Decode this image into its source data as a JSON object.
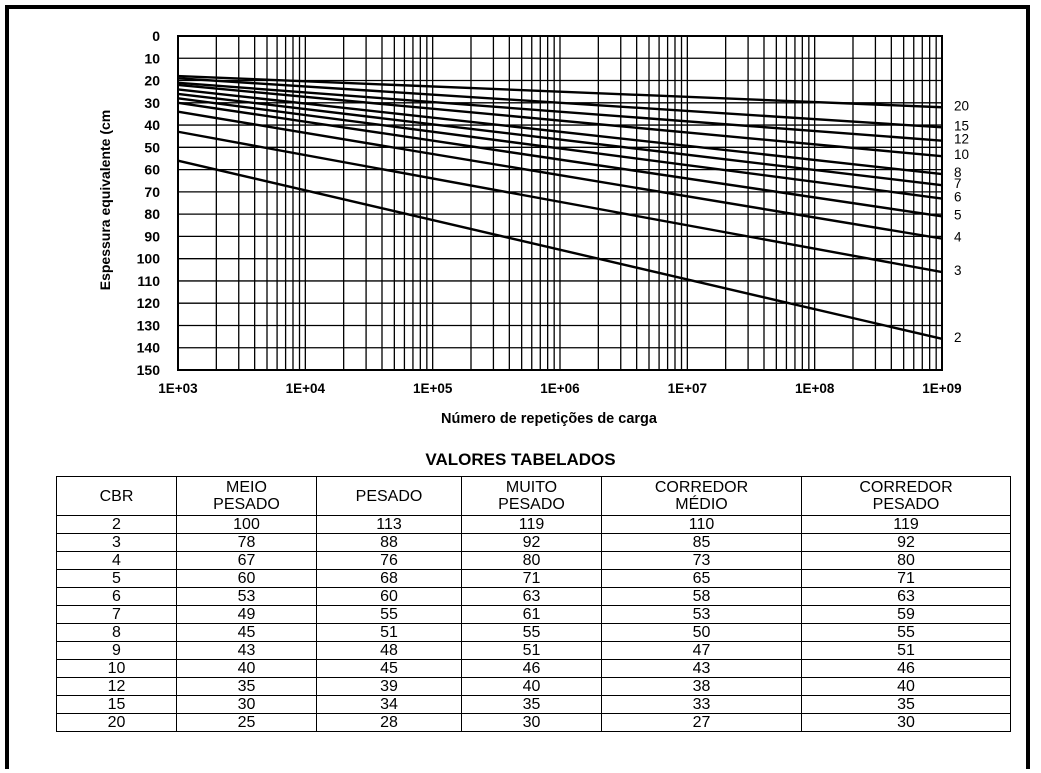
{
  "chart_data": {
    "type": "line",
    "title": "",
    "xlabel": "Número de repetições de carga",
    "ylabel": "Espessura equivalente (cm",
    "x_scale": "log",
    "xlim": [
      1000,
      1000000000
    ],
    "ylim": [
      0,
      150
    ],
    "y_inverted": true,
    "grid": true,
    "x_ticks": [
      "1E+03",
      "1E+04",
      "1E+05",
      "1E+06",
      "1E+07",
      "1E+08",
      "1E+09"
    ],
    "y_ticks": [
      "0",
      "10",
      "20",
      "30",
      "40",
      "50",
      "60",
      "70",
      "80",
      "90",
      "100",
      "110",
      "120",
      "130",
      "140",
      "150"
    ],
    "series": [
      {
        "name": "20",
        "x": [
          1000,
          1000000000
        ],
        "y": [
          18,
          32
        ]
      },
      {
        "name": "15",
        "x": [
          1000,
          1000000000
        ],
        "y": [
          19,
          41
        ]
      },
      {
        "name": "12",
        "x": [
          1000,
          1000000000
        ],
        "y": [
          21,
          47
        ]
      },
      {
        "name": "10",
        "x": [
          1000,
          1000000000
        ],
        "y": [
          22,
          54
        ]
      },
      {
        "name": "8",
        "x": [
          1000,
          1000000000
        ],
        "y": [
          24,
          62
        ]
      },
      {
        "name": "7",
        "x": [
          1000,
          1000000000
        ],
        "y": [
          26,
          67
        ]
      },
      {
        "name": "6",
        "x": [
          1000,
          1000000000
        ],
        "y": [
          28,
          73
        ]
      },
      {
        "name": "5",
        "x": [
          1000,
          1000000000
        ],
        "y": [
          30,
          81
        ]
      },
      {
        "name": "4",
        "x": [
          1000,
          1000000000
        ],
        "y": [
          34,
          91
        ]
      },
      {
        "name": "3",
        "x": [
          1000,
          1000000000
        ],
        "y": [
          43,
          106
        ]
      },
      {
        "name": "2",
        "x": [
          1000,
          1000000000
        ],
        "y": [
          56,
          136
        ]
      }
    ]
  },
  "table": {
    "title": "VALORES TABELADOS",
    "headers": [
      {
        "line1": "CBR",
        "line2": ""
      },
      {
        "line1": "MEIO",
        "line2": "PESADO"
      },
      {
        "line1": "PESADO",
        "line2": ""
      },
      {
        "line1": "MUITO",
        "line2": "PESADO"
      },
      {
        "line1": "CORREDOR",
        "line2": "MÉDIO"
      },
      {
        "line1": "CORREDOR",
        "line2": "PESADO"
      }
    ],
    "rows": [
      [
        "2",
        "100",
        "113",
        "119",
        "110",
        "119"
      ],
      [
        "3",
        "78",
        "88",
        "92",
        "85",
        "92"
      ],
      [
        "4",
        "67",
        "76",
        "80",
        "73",
        "80"
      ],
      [
        "5",
        "60",
        "68",
        "71",
        "65",
        "71"
      ],
      [
        "6",
        "53",
        "60",
        "63",
        "58",
        "63"
      ],
      [
        "7",
        "49",
        "55",
        "61",
        "53",
        "59"
      ],
      [
        "8",
        "45",
        "51",
        "55",
        "50",
        "55"
      ],
      [
        "9",
        "43",
        "48",
        "51",
        "47",
        "51"
      ],
      [
        "10",
        "40",
        "45",
        "46",
        "43",
        "46"
      ],
      [
        "12",
        "35",
        "39",
        "40",
        "38",
        "40"
      ],
      [
        "15",
        "30",
        "34",
        "35",
        "33",
        "35"
      ],
      [
        "20",
        "25",
        "28",
        "30",
        "27",
        "30"
      ]
    ]
  }
}
